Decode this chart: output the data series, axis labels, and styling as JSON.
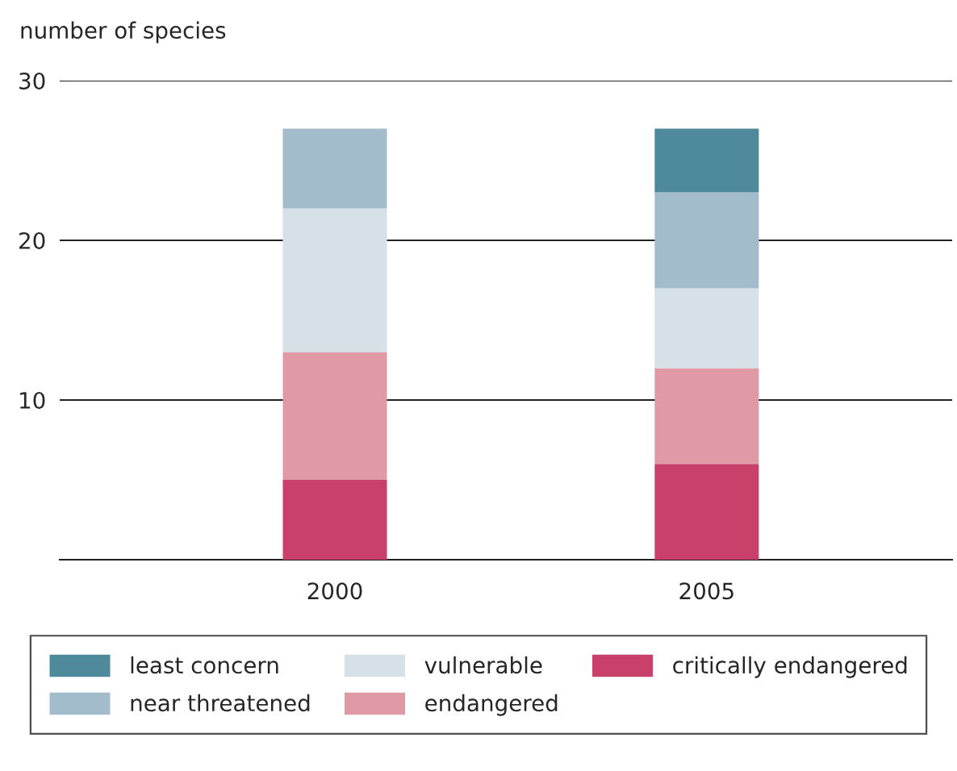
{
  "chart_data": {
    "type": "bar",
    "stacked": true,
    "ylabel": "number of species",
    "categories": [
      "2000",
      "2005"
    ],
    "series": [
      {
        "name": "critically endangered",
        "color": "#c9416b",
        "values": [
          5,
          6
        ]
      },
      {
        "name": "endangered",
        "color": "#e09aa6",
        "values": [
          8,
          6
        ]
      },
      {
        "name": "vulnerable",
        "color": "#d6e1e7",
        "values": [
          9,
          5
        ]
      },
      {
        "name": "near threatened",
        "color": "#a3bccb",
        "values": [
          5,
          6
        ]
      },
      {
        "name": "least concern",
        "color": "#4f8a9c",
        "values": [
          0,
          4
        ]
      }
    ],
    "ylim": [
      0,
      30
    ],
    "yticks": [
      {
        "value": 0,
        "label": null
      },
      10,
      20,
      30
    ],
    "grid": "y",
    "legend": "bottom"
  }
}
